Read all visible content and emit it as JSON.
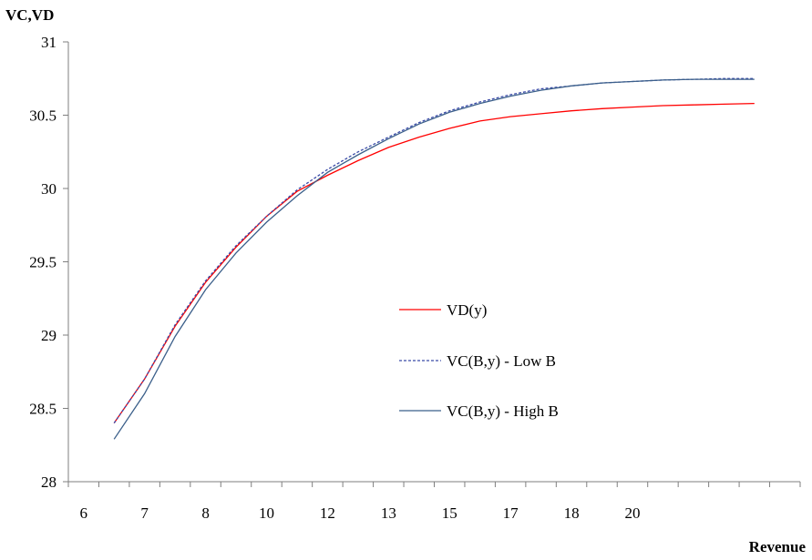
{
  "chart_data": {
    "type": "line",
    "ylabel": "VC,VD",
    "xlabel": "Revenue",
    "ylim": [
      28,
      31
    ],
    "y_ticks": [
      "28",
      "28.5",
      "29",
      "29.5",
      "30",
      "30.5",
      "31"
    ],
    "x_tick_labels": [
      "6",
      "7",
      "8",
      "10",
      "12",
      "13",
      "15",
      "17",
      "18",
      "20"
    ],
    "grid": false,
    "legend_position": "center",
    "x_points": 22,
    "series": [
      {
        "name": "VD(y)",
        "color": "#ff0000",
        "dash": "solid",
        "values": [
          28.4,
          28.7,
          29.06,
          29.36,
          29.6,
          29.81,
          29.98,
          30.09,
          30.19,
          30.28,
          30.35,
          30.41,
          30.46,
          30.49,
          30.51,
          30.53,
          30.545,
          30.555,
          30.565,
          30.57,
          30.575,
          30.58
        ]
      },
      {
        "name": "VC(B,y) - Low B",
        "color": "#3a4aa8",
        "dash": "dotted",
        "values": [
          28.4,
          28.7,
          29.07,
          29.37,
          29.61,
          29.81,
          29.99,
          30.13,
          30.25,
          30.35,
          30.45,
          30.53,
          30.59,
          30.64,
          30.68,
          30.7,
          30.72,
          30.73,
          30.74,
          30.745,
          30.75,
          30.75
        ]
      },
      {
        "name": "VC(B,y) - High B",
        "color": "#3b5f8a",
        "dash": "solid",
        "values": [
          28.29,
          28.6,
          28.99,
          29.31,
          29.56,
          29.77,
          29.95,
          30.11,
          30.23,
          30.34,
          30.44,
          30.52,
          30.58,
          30.63,
          30.67,
          30.7,
          30.72,
          30.73,
          30.74,
          30.745,
          30.745,
          30.745
        ]
      }
    ]
  }
}
